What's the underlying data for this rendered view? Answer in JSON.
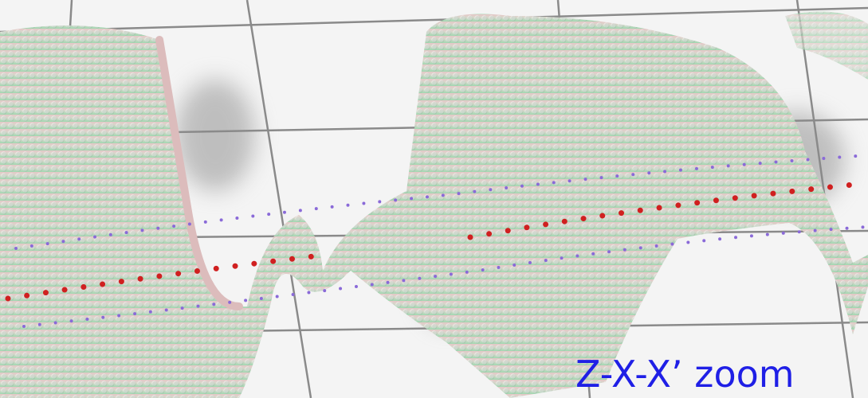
{
  "caption": "Z-X-X’ zoom"
}
